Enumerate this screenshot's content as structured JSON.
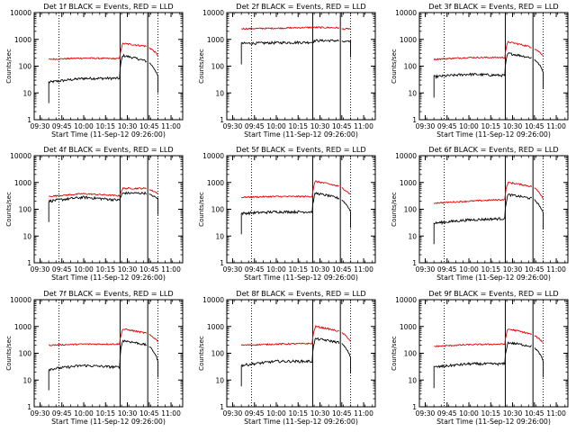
{
  "figure": {
    "start_time_label": "Start Time (11-Sep-12 09:26:00)",
    "y_axis_label": "Counts/sec",
    "x_ticks": [
      "09:30",
      "09:45",
      "10:00",
      "10:15",
      "10:30",
      "10:45",
      "11:00"
    ],
    "y_ticks": [
      "1",
      "10",
      "100",
      "1000",
      "10000"
    ],
    "colors": {
      "events": "#000000",
      "lld": "#e00000",
      "axes": "#000000"
    }
  },
  "chart_data": [
    {
      "type": "line",
      "title": "Det 1f BLACK = Events, RED = LLD",
      "xlabel": "Start Time (11-Sep-12 09:26:00)",
      "ylabel": "Counts/sec",
      "y_scale": "log",
      "ylim": [
        1,
        10000
      ],
      "xlim": [
        "09:26",
        "11:08"
      ],
      "grid": false,
      "vlines": {
        "dotted": [
          "09:43",
          "10:51"
        ],
        "solid": [
          "10:25",
          "10:44"
        ]
      },
      "series": [
        {
          "name": "Events",
          "color": "#000000",
          "level_start": 25,
          "level_mid": 35,
          "level_pre": 35,
          "peak": 250,
          "post": 150,
          "tail": 40
        },
        {
          "name": "LLD",
          "color": "#e00000",
          "level_start": 180,
          "level_mid": 200,
          "level_pre": 190,
          "peak": 700,
          "post": 550,
          "tail": 250
        }
      ]
    },
    {
      "type": "line",
      "title": "Det 2f BLACK = Events, RED = LLD",
      "xlabel": "Start Time (11-Sep-12 09:26:00)",
      "ylabel": "Counts/sec",
      "y_scale": "log",
      "ylim": [
        1,
        10000
      ],
      "xlim": [
        "09:26",
        "11:08"
      ],
      "grid": false,
      "vlines": {
        "dotted": [
          "09:43",
          "10:51"
        ],
        "solid": [
          "10:25",
          "10:44"
        ]
      },
      "series": [
        {
          "name": "Events",
          "color": "#000000",
          "level_start": 700,
          "level_mid": 750,
          "level_pre": 780,
          "peak": 900,
          "post": 900,
          "tail": 850
        },
        {
          "name": "LLD",
          "color": "#e00000",
          "level_start": 2500,
          "level_mid": 2600,
          "level_pre": 2800,
          "peak": 2800,
          "post": 2700,
          "tail": 2500
        }
      ]
    },
    {
      "type": "line",
      "title": "Det 3f BLACK = Events, RED = LLD",
      "xlabel": "Start Time (11-Sep-12 09:26:00)",
      "ylabel": "Counts/sec",
      "y_scale": "log",
      "ylim": [
        1,
        10000
      ],
      "xlim": [
        "09:26",
        "11:08"
      ],
      "grid": false,
      "vlines": {
        "dotted": [
          "09:43",
          "10:51"
        ],
        "solid": [
          "10:25",
          "10:44"
        ]
      },
      "series": [
        {
          "name": "Events",
          "color": "#000000",
          "level_start": 40,
          "level_mid": 50,
          "level_pre": 45,
          "peak": 300,
          "post": 200,
          "tail": 60
        },
        {
          "name": "LLD",
          "color": "#e00000",
          "level_start": 180,
          "level_mid": 210,
          "level_pre": 210,
          "peak": 800,
          "post": 500,
          "tail": 250
        }
      ]
    },
    {
      "type": "line",
      "title": "Det 4f BLACK = Events, RED = LLD",
      "xlabel": "Start Time (11-Sep-12 09:26:00)",
      "ylabel": "Counts/sec",
      "y_scale": "log",
      "ylim": [
        1,
        10000
      ],
      "xlim": [
        "09:26",
        "11:08"
      ],
      "grid": false,
      "vlines": {
        "dotted": [
          "09:43",
          "10:51"
        ],
        "solid": [
          "10:25",
          "10:44"
        ]
      },
      "series": [
        {
          "name": "Events",
          "color": "#000000",
          "level_start": 200,
          "level_mid": 280,
          "level_pre": 220,
          "peak": 400,
          "post": 400,
          "tail": 250
        },
        {
          "name": "LLD",
          "color": "#e00000",
          "level_start": 300,
          "level_mid": 380,
          "level_pre": 320,
          "peak": 600,
          "post": 600,
          "tail": 400
        }
      ]
    },
    {
      "type": "line",
      "title": "Det 5f BLACK = Events, RED = LLD",
      "xlabel": "Start Time (11-Sep-12 09:26:00)",
      "ylabel": "Counts/sec",
      "y_scale": "log",
      "ylim": [
        1,
        10000
      ],
      "xlim": [
        "09:26",
        "11:08"
      ],
      "grid": false,
      "vlines": {
        "dotted": [
          "09:43",
          "10:51"
        ],
        "solid": [
          "10:25",
          "10:44"
        ]
      },
      "series": [
        {
          "name": "Events",
          "color": "#000000",
          "level_start": 70,
          "level_mid": 80,
          "level_pre": 80,
          "peak": 400,
          "post": 250,
          "tail": 80
        },
        {
          "name": "LLD",
          "color": "#e00000",
          "level_start": 280,
          "level_mid": 300,
          "level_pre": 300,
          "peak": 1100,
          "post": 700,
          "tail": 350
        }
      ]
    },
    {
      "type": "line",
      "title": "Det 6f BLACK = Events, RED = LLD",
      "xlabel": "Start Time (11-Sep-12 09:26:00)",
      "ylabel": "Counts/sec",
      "y_scale": "log",
      "ylim": [
        1,
        10000
      ],
      "xlim": [
        "09:26",
        "11:08"
      ],
      "grid": false,
      "vlines": {
        "dotted": [
          "09:43",
          "10:51"
        ],
        "solid": [
          "10:25",
          "10:44"
        ]
      },
      "series": [
        {
          "name": "Events",
          "color": "#000000",
          "level_start": 30,
          "level_mid": 40,
          "level_pre": 45,
          "peak": 350,
          "post": 250,
          "tail": 70
        },
        {
          "name": "LLD",
          "color": "#e00000",
          "level_start": 170,
          "level_mid": 200,
          "level_pre": 230,
          "peak": 1000,
          "post": 700,
          "tail": 250
        }
      ]
    },
    {
      "type": "line",
      "title": "Det 7f BLACK = Events, RED = LLD",
      "xlabel": "Start Time (11-Sep-12 09:26:00)",
      "ylabel": "Counts/sec",
      "y_scale": "log",
      "ylim": [
        1,
        10000
      ],
      "xlim": [
        "09:26",
        "11:08"
      ],
      "grid": false,
      "vlines": {
        "dotted": [
          "09:43",
          "10:51"
        ],
        "solid": [
          "10:25",
          "10:44"
        ]
      },
      "series": [
        {
          "name": "Events",
          "color": "#000000",
          "level_start": 25,
          "level_mid": 35,
          "level_pre": 30,
          "peak": 300,
          "post": 200,
          "tail": 50
        },
        {
          "name": "LLD",
          "color": "#e00000",
          "level_start": 200,
          "level_mid": 220,
          "level_pre": 220,
          "peak": 800,
          "post": 550,
          "tail": 280
        }
      ]
    },
    {
      "type": "line",
      "title": "Det 8f BLACK = Events, RED = LLD",
      "xlabel": "Start Time (11-Sep-12 09:26:00)",
      "ylabel": "Counts/sec",
      "y_scale": "log",
      "ylim": [
        1,
        10000
      ],
      "xlim": [
        "09:26",
        "11:08"
      ],
      "grid": false,
      "vlines": {
        "dotted": [
          "09:43",
          "10:51"
        ],
        "solid": [
          "10:25",
          "10:44"
        ]
      },
      "series": [
        {
          "name": "Events",
          "color": "#000000",
          "level_start": 35,
          "level_mid": 50,
          "level_pre": 50,
          "peak": 350,
          "post": 250,
          "tail": 70
        },
        {
          "name": "LLD",
          "color": "#e00000",
          "level_start": 200,
          "level_mid": 220,
          "level_pre": 230,
          "peak": 1000,
          "post": 650,
          "tail": 280
        }
      ]
    },
    {
      "type": "line",
      "title": "Det 9f BLACK = Events, RED = LLD",
      "xlabel": "Start Time (11-Sep-12 09:26:00)",
      "ylabel": "Counts/sec",
      "y_scale": "log",
      "ylim": [
        1,
        10000
      ],
      "xlim": [
        "09:26",
        "11:08"
      ],
      "grid": false,
      "vlines": {
        "dotted": [
          "09:43",
          "10:51"
        ],
        "solid": [
          "10:25",
          "10:44"
        ]
      },
      "series": [
        {
          "name": "Events",
          "color": "#000000",
          "level_start": 30,
          "level_mid": 40,
          "level_pre": 40,
          "peak": 250,
          "post": 180,
          "tail": 50
        },
        {
          "name": "LLD",
          "color": "#e00000",
          "level_start": 180,
          "level_mid": 210,
          "level_pre": 220,
          "peak": 800,
          "post": 500,
          "tail": 250
        }
      ]
    }
  ]
}
